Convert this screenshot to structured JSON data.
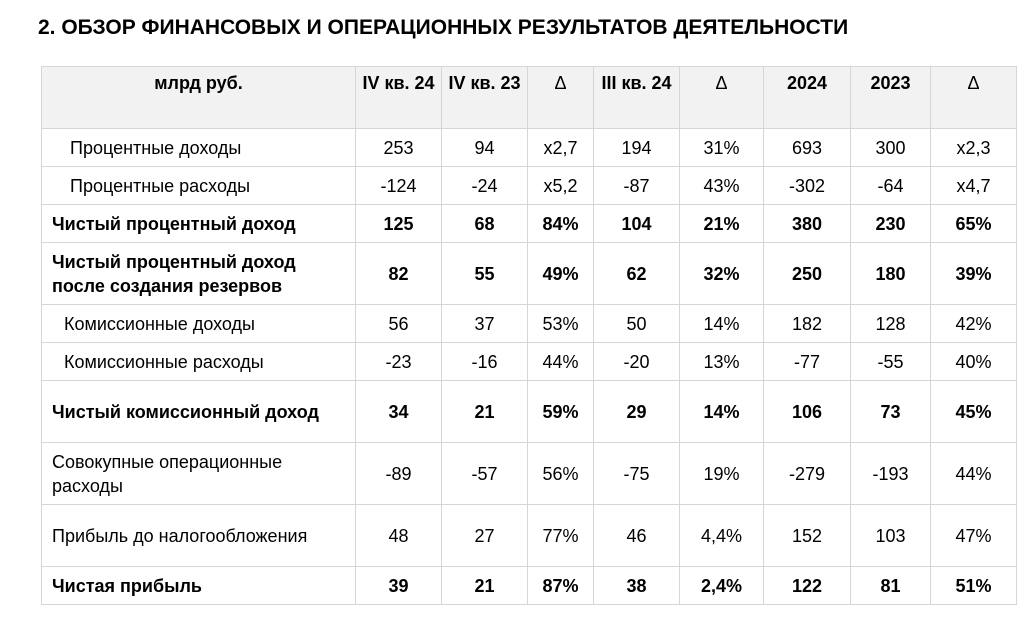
{
  "title": "2. ОБЗОР ФИНАНСОВЫХ И ОПЕРАЦИОННЫХ РЕЗУЛЬТАТОВ ДЕЯТЕЛЬНОСТИ",
  "table": {
    "headers": [
      "млрд руб.",
      "IV кв. 24",
      "IV кв. 23",
      "Δ",
      "III кв. 24",
      "Δ",
      "2024",
      "2023",
      "Δ"
    ],
    "rows": [
      [
        "Процентные доходы",
        "253",
        "94",
        "x2,7",
        "194",
        "31%",
        "693",
        "300",
        "x2,3"
      ],
      [
        "Процентные расходы",
        "-124",
        "-24",
        "x5,2",
        "-87",
        "43%",
        "-302",
        "-64",
        "x4,7"
      ],
      [
        "Чистый процентный доход",
        "125",
        "68",
        "84%",
        "104",
        "21%",
        "380",
        "230",
        "65%"
      ],
      [
        "Чистый процентный доход после создания резервов",
        "82",
        "55",
        "49%",
        "62",
        "32%",
        "250",
        "180",
        "39%"
      ],
      [
        "Комиссионные доходы",
        "56",
        "37",
        "53%",
        "50",
        "14%",
        "182",
        "128",
        "42%"
      ],
      [
        "Комиссионные расходы",
        "-23",
        "-16",
        "44%",
        "-20",
        "13%",
        "-77",
        "-55",
        "40%"
      ],
      [
        "Чистый комиссионный доход",
        "34",
        "21",
        "59%",
        "29",
        "14%",
        "106",
        "73",
        "45%"
      ],
      [
        "Совокупные операционные расходы",
        "-89",
        "-57",
        "56%",
        "-75",
        "19%",
        "-279",
        "-193",
        "44%"
      ],
      [
        "Прибыль до налогообложения",
        "48",
        "27",
        "77%",
        "46",
        "4,4%",
        "152",
        "103",
        "47%"
      ],
      [
        "Чистая прибыль",
        "39",
        "21",
        "87%",
        "38",
        "2,4%",
        "122",
        "81",
        "51%"
      ]
    ]
  }
}
